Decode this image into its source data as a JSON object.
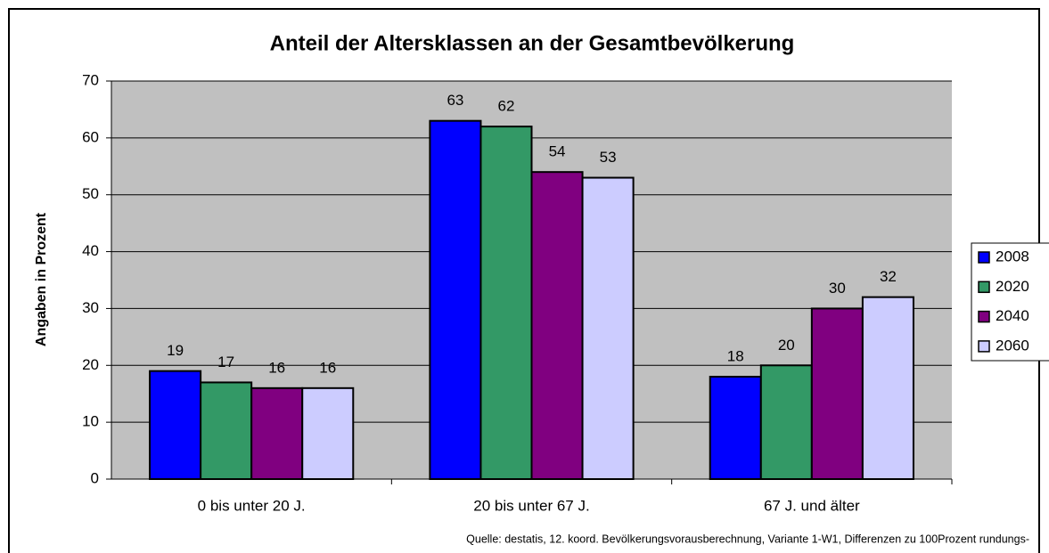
{
  "chart_data": {
    "type": "bar",
    "title": "Anteil der Altersklassen an der Gesamtbevölkerung",
    "y_label": "Angaben in Prozent",
    "categories": [
      "0 bis unter 20 J.",
      "20 bis unter 67 J.",
      "67 J. und älter"
    ],
    "series": [
      {
        "name": "2008",
        "color": "#0000ff",
        "values": [
          19,
          63,
          18
        ]
      },
      {
        "name": "2020",
        "color": "#339966",
        "values": [
          17,
          62,
          20
        ]
      },
      {
        "name": "2040",
        "color": "#800080",
        "values": [
          16,
          54,
          30
        ]
      },
      {
        "name": "2060",
        "color": "#ccccff",
        "values": [
          16,
          53,
          32
        ]
      }
    ],
    "ylim": [
      0,
      70
    ],
    "yticks": [
      0,
      10,
      20,
      30,
      40,
      50,
      60,
      70
    ],
    "grid": true,
    "legend": "right",
    "source": "Quelle: destatis, 12. koord. Bevölkerungsvorausberechnung, Variante 1-W1, Differenzen zu 100Prozent rundungs-"
  }
}
